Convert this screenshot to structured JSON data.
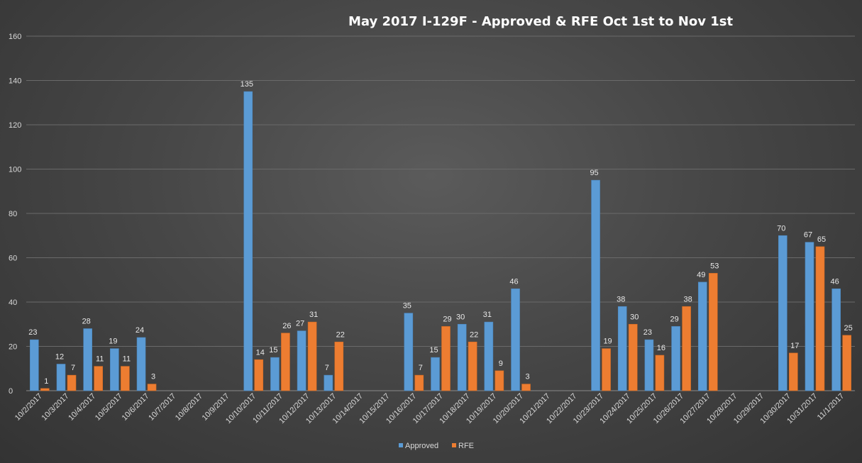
{
  "chart_data": {
    "type": "bar",
    "title": "May 2017 I-129F - Approved  & RFE Oct 1st to Nov 1st",
    "categories": [
      "10/2/2017",
      "10/3/2017",
      "10/4/2017",
      "10/5/2017",
      "10/6/2017",
      "10/7/2017",
      "10/8/2017",
      "10/9/2017",
      "10/10/2017",
      "10/11/2017",
      "10/12/2017",
      "10/13/2017",
      "10/14/2017",
      "10/15/2017",
      "10/16/2017",
      "10/17/2017",
      "10/18/2017",
      "10/19/2017",
      "10/20/2017",
      "10/21/2017",
      "10/22/2017",
      "10/23/2017",
      "10/24/2017",
      "10/25/2017",
      "10/26/2017",
      "10/27/2017",
      "10/28/2017",
      "10/29/2017",
      "10/30/2017",
      "10/31/2017",
      "11/1/2017"
    ],
    "series": [
      {
        "name": "Approved",
        "color": "#5b9bd5",
        "values": [
          23,
          12,
          28,
          19,
          24,
          null,
          null,
          null,
          135,
          15,
          27,
          7,
          null,
          null,
          35,
          15,
          30,
          31,
          46,
          null,
          null,
          95,
          38,
          23,
          29,
          49,
          null,
          null,
          70,
          67,
          46
        ]
      },
      {
        "name": "RFE",
        "color": "#ed7d31",
        "values": [
          1,
          7,
          11,
          11,
          3,
          null,
          null,
          null,
          14,
          26,
          31,
          22,
          null,
          null,
          7,
          29,
          22,
          9,
          3,
          null,
          null,
          19,
          30,
          16,
          38,
          53,
          null,
          null,
          17,
          65,
          25
        ]
      }
    ],
    "ylim": [
      0,
      160
    ],
    "yticks": [
      0,
      20,
      40,
      60,
      80,
      100,
      120,
      140,
      160
    ],
    "xlabel": "",
    "ylabel": "",
    "grid": true,
    "legend_position": "bottom"
  }
}
